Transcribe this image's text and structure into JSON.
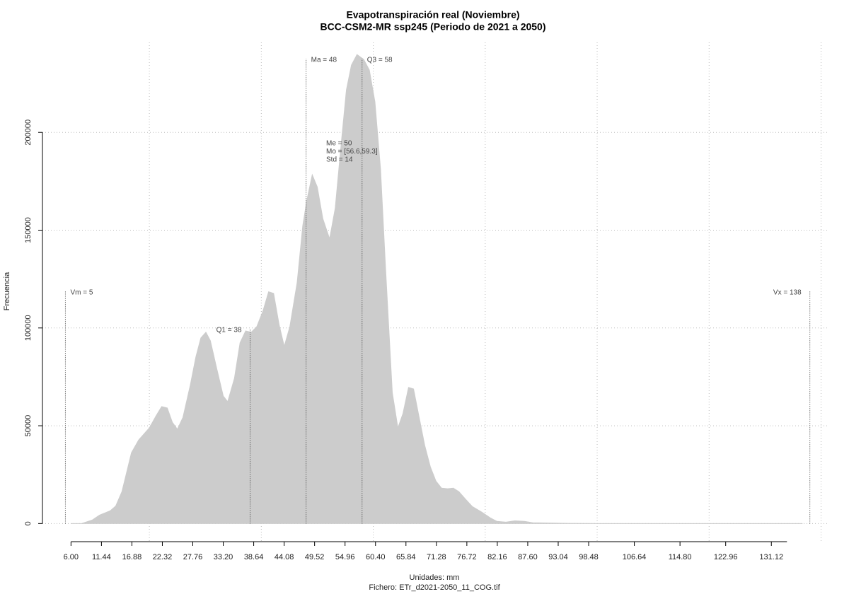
{
  "chart_data": {
    "type": "area",
    "title": "Evapotranspiración real (Noviembre)",
    "subtitle": "BCC-CSM2-MR ssp245 (Periodo de 2021 a 2050)",
    "ylabel": "Frecuencia",
    "xlabel": "Unidades: mm",
    "caption": "Fichero: ETr_d2021-2050_11_COG.tif",
    "color": "#cccccc",
    "x": [
      6,
      7.9,
      9.8,
      11.1,
      13,
      14,
      15.1,
      16.8,
      18.1,
      20,
      21.2,
      22.2,
      23.2,
      24.1,
      25,
      26,
      27.3,
      28.3,
      29.2,
      30.1,
      30.9,
      32,
      33.2,
      34,
      35.2,
      36.2,
      37.2,
      38.2,
      39.2,
      40.3,
      41.3,
      42.2,
      43.2,
      44.1,
      45.1,
      46.4,
      47.4,
      48.1,
      49.1,
      50,
      51,
      52.2,
      53.2,
      54.2,
      55.2,
      56.1,
      57.1,
      58.3,
      59.3,
      60.3,
      61.3,
      62.2,
      63.4,
      64.4,
      65.3,
      66.3,
      67.2,
      68.2,
      69.2,
      70.2,
      71.2,
      72.2,
      73.3,
      74.3,
      75.3,
      76.4,
      77.7,
      79.4,
      80.9,
      82.1,
      83.7,
      85.3,
      87,
      88.5,
      92.3,
      94.8,
      101.2,
      136.7
    ],
    "values": [
      0,
      0,
      1800,
      4300,
      6500,
      9000,
      16300,
      36200,
      42800,
      48900,
      55100,
      59800,
      59100,
      51800,
      48200,
      54300,
      70600,
      85100,
      94900,
      97800,
      93500,
      79700,
      65200,
      62300,
      74300,
      92400,
      98500,
      97800,
      100700,
      108700,
      118500,
      117700,
      101400,
      90600,
      100700,
      123200,
      152200,
      164800,
      178300,
      172100,
      155800,
      145600,
      161200,
      192000,
      221700,
      234400,
      239800,
      237300,
      231900,
      215600,
      181200,
      130400,
      67000,
      48900,
      56200,
      69600,
      68800,
      54300,
      39900,
      29000,
      21700,
      18100,
      17800,
      18100,
      16300,
      12700,
      8700,
      5800,
      2900,
      1100,
      700,
      1400,
      1100,
      400,
      200,
      100,
      0,
      0
    ],
    "xlim": [
      0.9,
      141.2
    ],
    "ylim": [
      -10000,
      246000
    ],
    "xticks": [
      {
        "value": 6,
        "label": "6.00"
      },
      11.44,
      16.88,
      22.32,
      27.76,
      {
        "value": 33.2,
        "label": "33.20"
      },
      38.64,
      44.08,
      49.52,
      54.96,
      {
        "value": 60.4,
        "label": "60.40"
      },
      65.84,
      71.28,
      76.72,
      82.16,
      {
        "value": 87.6,
        "label": "87.60"
      },
      93.04,
      98.48,
      106.64,
      {
        "value": 114.8,
        "label": "114.80"
      },
      122.96,
      131.12
    ],
    "yticks": [
      0,
      50000,
      100000,
      150000,
      200000
    ],
    "xgrid": [
      20,
      40,
      60,
      80,
      100,
      120,
      140
    ],
    "grid": true,
    "markers": [
      {
        "label": "Vm = 5",
        "value": 5,
        "height": 118800,
        "side": "right"
      },
      {
        "label": "Q1 = 38",
        "value": 38,
        "height": 99600,
        "side": "left"
      },
      {
        "label": "Ma = 48",
        "value": 48,
        "height": 237700,
        "side": "right"
      },
      {
        "label": "Q3 = 58",
        "value": 58,
        "height": 237700,
        "side": "right"
      },
      {
        "label": "Vx = 138",
        "value": 138,
        "height": 118800,
        "side": "left"
      }
    ],
    "stats": [
      "Me = 50",
      "Mo = [56.6,59.3]",
      "Std = 14"
    ]
  }
}
